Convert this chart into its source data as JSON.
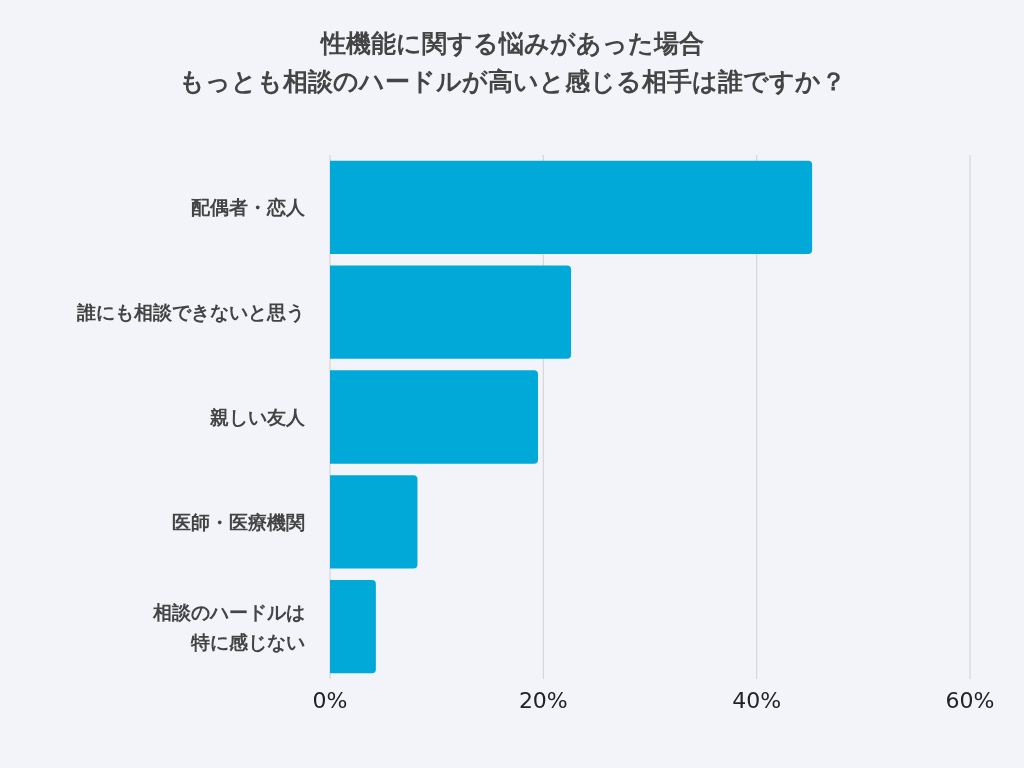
{
  "chart_data": {
    "type": "bar",
    "orientation": "horizontal",
    "title": "性機能に関する悩みがあった場合",
    "subtitle": "もっとも相談のハードルが高いと感じる相手は誰ですか？",
    "categories": [
      "配偶者・恋人",
      "誰にも相談できないと思う",
      "親しい友人",
      "医師・医療機関",
      "相談のハードルは特に感じない"
    ],
    "values": [
      45.2,
      22.6,
      19.5,
      8.2,
      4.3
    ],
    "color": "#00a9d7",
    "xlim": [
      0,
      60
    ],
    "xticks": [
      {
        "value": 0,
        "label": "0%"
      },
      {
        "value": 20,
        "label": "20%"
      },
      {
        "value": 40,
        "label": "40%"
      },
      {
        "value": 60,
        "label": "60%"
      }
    ],
    "grid": "x"
  }
}
